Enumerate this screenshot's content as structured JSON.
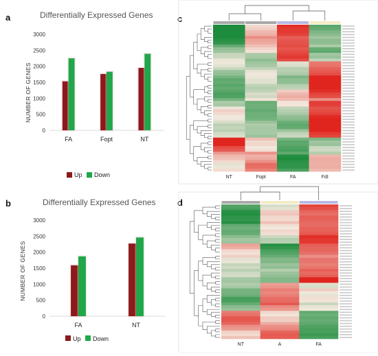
{
  "panels": {
    "a": {
      "letter": "a"
    },
    "b": {
      "letter": "b"
    },
    "c": {
      "letter": "c"
    },
    "d": {
      "letter": "d"
    }
  },
  "colors": {
    "up": "#8b1a1a",
    "down": "#1fa84a",
    "heat_high": "#e0251e",
    "heat_low": "#1d8c3c",
    "heat_mid": "#f3e9de",
    "bar_accent": "#f7c7d4"
  },
  "chart_data": [
    {
      "id": "a",
      "type": "bar",
      "title": "Differentially Expressed Genes",
      "xlabel": "",
      "ylabel": "NUMBER OF GENES",
      "categories": [
        "FA",
        "Fopt",
        "NT"
      ],
      "series": [
        {
          "name": "Up",
          "values": [
            1530,
            1760,
            1950
          ]
        },
        {
          "name": "Down",
          "values": [
            2250,
            1830,
            2390
          ]
        }
      ],
      "ylim": [
        0,
        3000
      ],
      "yticks": [
        0,
        500,
        1000,
        1500,
        2000,
        2500,
        3000
      ],
      "grid": false,
      "legend": "bottom"
    },
    {
      "id": "b",
      "type": "bar",
      "title": "Differentially Expressed Genes",
      "xlabel": "",
      "ylabel": "NUMBER OF GENES",
      "categories": [
        "FA",
        "NT"
      ],
      "series": [
        {
          "name": "Up",
          "values": [
            1590,
            2270
          ]
        },
        {
          "name": "Down",
          "values": [
            1870,
            2460
          ]
        }
      ],
      "ylim": [
        0,
        3000
      ],
      "yticks": [
        0,
        500,
        1000,
        1500,
        2000,
        2500,
        3000
      ],
      "grid": false,
      "legend": "bottom"
    },
    {
      "id": "c",
      "type": "heatmap",
      "columns": [
        "NT",
        "Fopt",
        "FA",
        "FdI"
      ],
      "column_colors": [
        "#a8a8a8",
        "#a8a8a8",
        "#b7b7e6",
        "#f3ecc4"
      ],
      "rows": 52,
      "pattern": [
        [
          -2.0,
          0.2,
          1.6,
          -1.1
        ],
        [
          -1.9,
          0.3,
          1.7,
          -1.0
        ],
        [
          -1.7,
          0.6,
          1.5,
          -0.9
        ],
        [
          -1.5,
          0.4,
          1.6,
          -1.1
        ],
        [
          -1.2,
          0.3,
          1.6,
          -0.8
        ],
        [
          -0.9,
          0.2,
          1.4,
          -1.3
        ],
        [
          -0.6,
          -0.4,
          1.4,
          -0.6
        ],
        [
          -0.3,
          -0.6,
          1.2,
          -0.2
        ],
        [
          -0.2,
          -0.5,
          -0.4,
          1.3
        ],
        [
          -0.3,
          -0.4,
          -0.6,
          1.4
        ],
        [
          -0.6,
          -0.2,
          -0.5,
          1.4
        ],
        [
          -0.8,
          -0.3,
          -0.8,
          1.7
        ],
        [
          -1.0,
          -0.4,
          -0.6,
          1.7
        ],
        [
          -1.2,
          -0.6,
          -0.3,
          1.8
        ],
        [
          -1.4,
          -0.4,
          0.3,
          1.6
        ],
        [
          -1.6,
          -0.1,
          0.4,
          1.5
        ],
        [
          -1.3,
          0.3,
          0.2,
          1.0
        ],
        [
          -0.8,
          -0.9,
          -0.2,
          1.8
        ],
        [
          -0.1,
          -1.0,
          -0.6,
          1.6
        ],
        [
          0.3,
          -1.2,
          -0.6,
          1.6
        ],
        [
          0.2,
          -1.3,
          -0.7,
          1.7
        ],
        [
          0.0,
          -1.0,
          -0.9,
          1.8
        ],
        [
          -0.3,
          -0.8,
          -1.0,
          1.9
        ],
        [
          -0.5,
          -0.7,
          -0.6,
          1.8
        ],
        [
          -0.4,
          -0.6,
          -0.4,
          1.5
        ],
        [
          1.6,
          0.6,
          -1.2,
          -0.9
        ],
        [
          1.7,
          0.4,
          -1.5,
          -0.5
        ],
        [
          1.3,
          0.2,
          -1.6,
          -0.1
        ],
        [
          0.8,
          0.8,
          -1.3,
          -0.4
        ],
        [
          0.6,
          0.4,
          -1.7,
          0.5
        ],
        [
          0.4,
          0.6,
          -1.5,
          0.4
        ],
        [
          0.1,
          0.9,
          -1.4,
          0.3
        ],
        [
          0.2,
          0.8,
          -1.2,
          0.2
        ]
      ]
    },
    {
      "id": "d",
      "type": "heatmap",
      "columns": [
        "NT",
        "A",
        "FA"
      ],
      "column_colors": [
        "#a8a8a8",
        "#f3ecc4",
        "#b7b7e6"
      ],
      "rows": 48,
      "pattern": [
        [
          -1.3,
          -0.2,
          1.4
        ],
        [
          -1.5,
          0.1,
          1.3
        ],
        [
          -1.4,
          -0.1,
          1.5
        ],
        [
          -1.6,
          0.2,
          1.4
        ],
        [
          -1.2,
          0.0,
          1.3
        ],
        [
          -1.4,
          0.3,
          1.2
        ],
        [
          -1.1,
          -0.1,
          1.5
        ],
        [
          -0.9,
          -0.3,
          1.4
        ],
        [
          0.6,
          -1.6,
          1.1
        ],
        [
          0.3,
          -1.5,
          1.2
        ],
        [
          0.5,
          -1.4,
          1.0
        ],
        [
          0.1,
          -1.2,
          1.3
        ],
        [
          -0.3,
          -0.9,
          1.2
        ],
        [
          -0.6,
          -0.5,
          1.3
        ],
        [
          -0.5,
          -0.6,
          1.1
        ],
        [
          -0.9,
          -0.7,
          1.6
        ],
        [
          -0.7,
          0.9,
          -0.4
        ],
        [
          -1.0,
          1.0,
          0.2
        ],
        [
          -0.9,
          0.8,
          0.0
        ],
        [
          -1.2,
          0.9,
          0.3
        ],
        [
          -1.0,
          1.1,
          -0.1
        ],
        [
          -0.8,
          0.7,
          0.1
        ],
        [
          0.9,
          0.2,
          -1.2
        ],
        [
          1.1,
          0.5,
          -1.4
        ],
        [
          1.0,
          0.8,
          -1.5
        ],
        [
          0.7,
          1.0,
          -1.6
        ],
        [
          0.3,
          1.2,
          -1.5
        ],
        [
          0.6,
          1.1,
          -1.3
        ]
      ]
    }
  ]
}
